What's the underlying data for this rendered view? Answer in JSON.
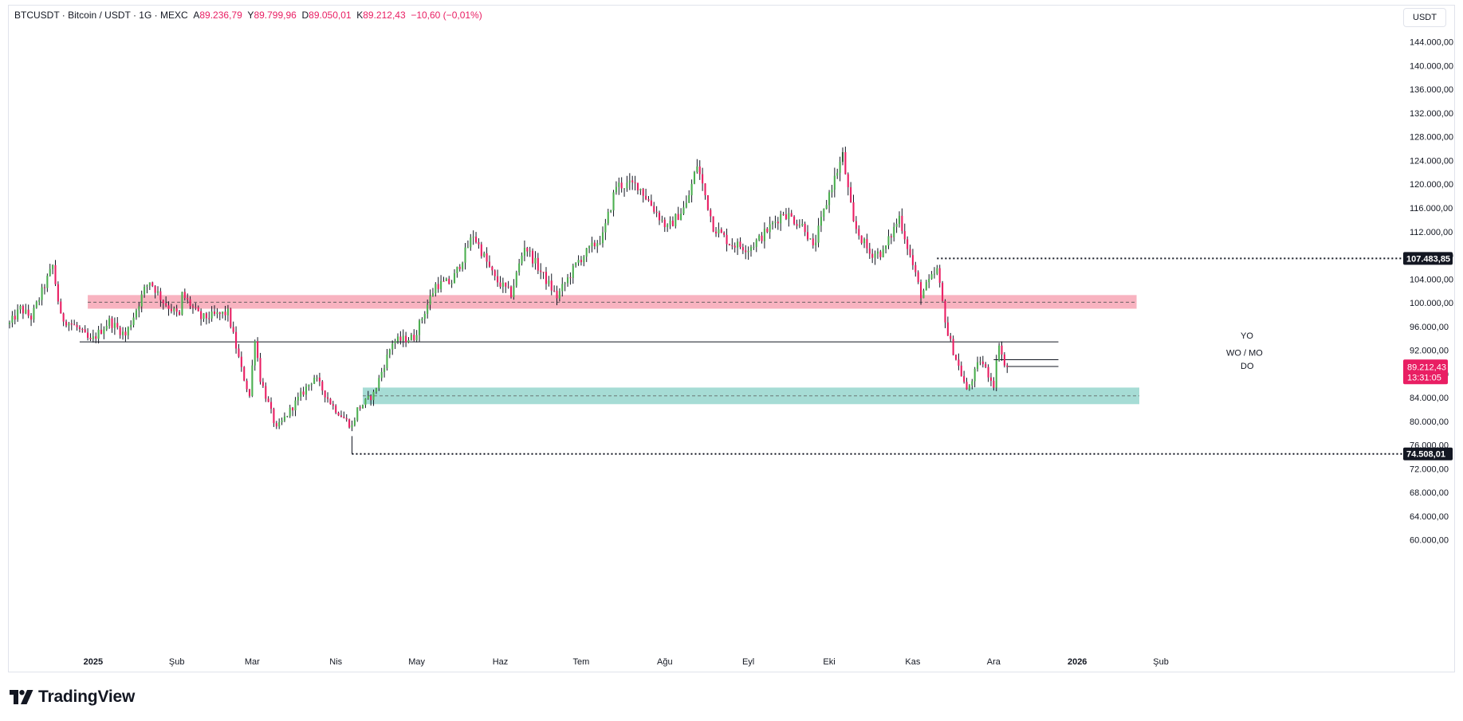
{
  "header": {
    "symbol": "BTCUSDT",
    "sep1": "·",
    "name": "Bitcoin / USDT",
    "sep2": "·",
    "interval": "1G",
    "sep3": "·",
    "exchange": "MEXC",
    "open_label": "A",
    "open": "89.236,79",
    "high_label": "Y",
    "high": "89.799,96",
    "low_label": "D",
    "low": "89.050,01",
    "close_label": "K",
    "close": "89.212,43",
    "change": "−10,60 (−0,01%)"
  },
  "currency_button": "USDT",
  "brand": {
    "name": "TradingView"
  },
  "colors": {
    "up": "#4caf50",
    "down": "#e91e63",
    "resistance_zone": "#f8b3c0",
    "support_zone": "#a6dcd5",
    "price_tag": "#e91e63"
  },
  "chart_data": {
    "type": "candlestick",
    "x": "time (daily candles)",
    "ylim": [
      57000,
      150000
    ],
    "y_scale": "linear",
    "y_ticks": [
      {
        "value": 60000,
        "label": "60.000,00"
      },
      {
        "value": 64000,
        "label": "64.000,00"
      },
      {
        "value": 68000,
        "label": "68.000,00"
      },
      {
        "value": 72000,
        "label": "72.000,00"
      },
      {
        "value": 76000,
        "label": "76.000,00"
      },
      {
        "value": 80000,
        "label": "80.000,00"
      },
      {
        "value": 84000,
        "label": "84.000,00"
      },
      {
        "value": 88000,
        "label": "88.000,00"
      },
      {
        "value": 92000,
        "label": "92.000,00"
      },
      {
        "value": 96000,
        "label": "96.000,00"
      },
      {
        "value": 100000,
        "label": "100.000,00"
      },
      {
        "value": 104000,
        "label": "104.000,00"
      },
      {
        "value": 108000,
        "label": "108.000,00"
      },
      {
        "value": 112000,
        "label": "112.000,00"
      },
      {
        "value": 116000,
        "label": "116.000,00"
      },
      {
        "value": 120000,
        "label": "120.000,00"
      },
      {
        "value": 124000,
        "label": "124.000,00"
      },
      {
        "value": 128000,
        "label": "128.000,00"
      },
      {
        "value": 132000,
        "label": "132.000,00"
      },
      {
        "value": 136000,
        "label": "136.000,00"
      },
      {
        "value": 140000,
        "label": "140.000,00"
      },
      {
        "value": 144000,
        "label": "144.000,00"
      }
    ],
    "x_ticks": [
      {
        "date": "2025-01-01",
        "label": "2025"
      },
      {
        "date": "2025-02-01",
        "label": "Şub"
      },
      {
        "date": "2025-03-01",
        "label": "Mar"
      },
      {
        "date": "2025-04-01",
        "label": "Nis"
      },
      {
        "date": "2025-05-01",
        "label": "May"
      },
      {
        "date": "2025-06-01",
        "label": "Haz"
      },
      {
        "date": "2025-07-01",
        "label": "Tem"
      },
      {
        "date": "2025-08-01",
        "label": "Ağu"
      },
      {
        "date": "2025-09-01",
        "label": "Eyl"
      },
      {
        "date": "2025-10-01",
        "label": "Eki"
      },
      {
        "date": "2025-11-01",
        "label": "Kas"
      },
      {
        "date": "2025-12-01",
        "label": "Ara"
      },
      {
        "date": "2026-01-01",
        "label": "2026"
      },
      {
        "date": "2026-02-01",
        "label": "Şub"
      }
    ],
    "x_range": [
      "2024-12-01",
      "2026-02-14"
    ],
    "close_path": [
      [
        "2024-12-01",
        96400
      ],
      [
        "2024-12-05",
        99000
      ],
      [
        "2024-12-09",
        97500
      ],
      [
        "2024-12-17",
        106200
      ],
      [
        "2024-12-20",
        97500
      ],
      [
        "2024-12-26",
        95800
      ],
      [
        "2024-12-31",
        93400
      ],
      [
        "2025-01-07",
        96900
      ],
      [
        "2025-01-13",
        94500
      ],
      [
        "2025-01-20",
        102200
      ],
      [
        "2025-01-22",
        103700
      ],
      [
        "2025-01-27",
        100200
      ],
      [
        "2025-02-02",
        97700
      ],
      [
        "2025-02-03",
        101400
      ],
      [
        "2025-02-10",
        97400
      ],
      [
        "2025-02-20",
        98300
      ],
      [
        "2025-02-25",
        88700
      ],
      [
        "2025-02-28",
        84300
      ],
      [
        "2025-03-02",
        94200
      ],
      [
        "2025-03-04",
        87200
      ],
      [
        "2025-03-10",
        78600
      ],
      [
        "2025-03-16",
        82500
      ],
      [
        "2025-03-24",
        87500
      ],
      [
        "2025-03-31",
        82500
      ],
      [
        "2025-04-07",
        79100
      ],
      [
        "2025-04-09",
        82000
      ],
      [
        "2025-04-15",
        84600
      ],
      [
        "2025-04-22",
        93400
      ],
      [
        "2025-04-30",
        94200
      ],
      [
        "2025-05-08",
        103000
      ],
      [
        "2025-05-14",
        103500
      ],
      [
        "2025-05-22",
        111500
      ],
      [
        "2025-05-30",
        104000
      ],
      [
        "2025-06-05",
        101500
      ],
      [
        "2025-06-10",
        109700
      ],
      [
        "2025-06-17",
        104500
      ],
      [
        "2025-06-22",
        101000
      ],
      [
        "2025-06-30",
        107100
      ],
      [
        "2025-07-09",
        111200
      ],
      [
        "2025-07-14",
        119800
      ],
      [
        "2025-07-22",
        119900
      ],
      [
        "2025-08-02",
        112500
      ],
      [
        "2025-08-09",
        116500
      ],
      [
        "2025-08-13",
        123300
      ],
      [
        "2025-08-19",
        112900
      ],
      [
        "2025-08-25",
        110100
      ],
      [
        "2025-09-01",
        109200
      ],
      [
        "2025-09-05",
        110700
      ],
      [
        "2025-09-14",
        115300
      ],
      [
        "2025-09-22",
        112700
      ],
      [
        "2025-09-25",
        109000
      ],
      [
        "2025-10-01",
        118500
      ],
      [
        "2025-10-06",
        124800
      ],
      [
        "2025-10-10",
        113200
      ],
      [
        "2025-10-16",
        108300
      ],
      [
        "2025-10-21",
        108500
      ],
      [
        "2025-10-27",
        114500
      ],
      [
        "2025-11-04",
        101400
      ],
      [
        "2025-11-10",
        105500
      ],
      [
        "2025-11-14",
        94600
      ],
      [
        "2025-11-20",
        86600
      ],
      [
        "2025-11-21",
        85000
      ],
      [
        "2025-11-26",
        90400
      ],
      [
        "2025-12-01",
        86300
      ],
      [
        "2025-12-03",
        93400
      ],
      [
        "2025-12-05",
        89300
      ],
      [
        "2025-12-06",
        89212
      ]
    ],
    "extremes": {
      "high": {
        "date": "2025-10-06",
        "value": 126200
      },
      "low": {
        "date": "2025-04-07",
        "value": 74508
      }
    },
    "zones": [
      {
        "name": "resistance",
        "from": 99000,
        "to": 101300,
        "mid": 100100,
        "start": "2024-12-30",
        "end": "2026-01-23"
      },
      {
        "name": "support",
        "from": 82900,
        "to": 85700,
        "mid": 84300,
        "start": "2025-04-11",
        "end": "2026-01-24"
      }
    ],
    "horizontal_levels": [
      {
        "label": "YO",
        "value": 93400,
        "start": "2024-12-27",
        "end": "2025-12-25"
      },
      {
        "label": "WO / MO",
        "value": 90400,
        "start": "2025-12-01",
        "end": "2025-12-25"
      },
      {
        "label": "DO",
        "value": 89250,
        "start": "2025-12-06",
        "end": "2025-12-25"
      }
    ],
    "dotted_levels": [
      {
        "value": 107483.85,
        "label": "107.483,85",
        "start": "2025-11-10"
      },
      {
        "value": 74508.01,
        "label": "74.508,01",
        "start": "2025-04-07"
      }
    ],
    "last_price": {
      "value": 89212.43,
      "label": "89.212,43",
      "countdown": "13:31:05"
    }
  }
}
